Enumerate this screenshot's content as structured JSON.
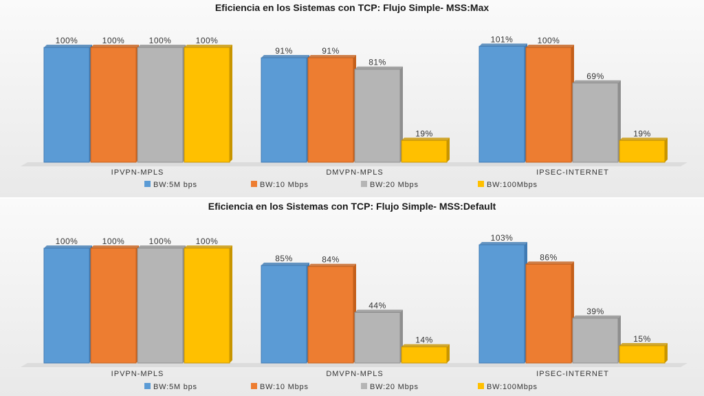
{
  "chart_data": [
    {
      "type": "bar",
      "title": "Eficiencia en los Sistemas  con TCP: Flujo Simple- MSS:Max",
      "categories": [
        "IPVPN-MPLS",
        "DMVPN-MPLS",
        "IPSEC-INTERNET"
      ],
      "series": [
        {
          "name": "BW:5M bps",
          "values": [
            100,
            91,
            101
          ]
        },
        {
          "name": "BW:10 Mbps",
          "values": [
            100,
            91,
            100
          ]
        },
        {
          "name": "BW:20 Mbps",
          "values": [
            100,
            81,
            69
          ]
        },
        {
          "name": "BW:100Mbps",
          "values": [
            100,
            19,
            19
          ]
        }
      ],
      "ylim": [
        0,
        100
      ],
      "value_suffix": "%",
      "legend": "bottom",
      "grid": false
    },
    {
      "type": "bar",
      "title": "Eficiencia en los Sistemas  con TCP: Flujo Simple- MSS:Default",
      "categories": [
        "IPVPN-MPLS",
        "DMVPN-MPLS",
        "IPSEC-INTERNET"
      ],
      "series": [
        {
          "name": "BW:5M bps",
          "values": [
            100,
            85,
            103
          ]
        },
        {
          "name": "BW:10 Mbps",
          "values": [
            100,
            84,
            86
          ]
        },
        {
          "name": "BW:20 Mbps",
          "values": [
            100,
            44,
            39
          ]
        },
        {
          "name": "BW:100Mbps",
          "values": [
            100,
            14,
            15
          ]
        }
      ],
      "ylim": [
        0,
        100
      ],
      "value_suffix": "%",
      "legend": "bottom",
      "grid": false
    }
  ],
  "colors": {
    "series": [
      "#5b9bd5",
      "#ed7d31",
      "#b5b5b5",
      "#ffc000"
    ],
    "series_dark": [
      "#3f7ab3",
      "#c45f1a",
      "#8e8e8e",
      "#c89500"
    ],
    "panel_bg": "#f4f4f4",
    "floor": "#dcdcdc"
  }
}
